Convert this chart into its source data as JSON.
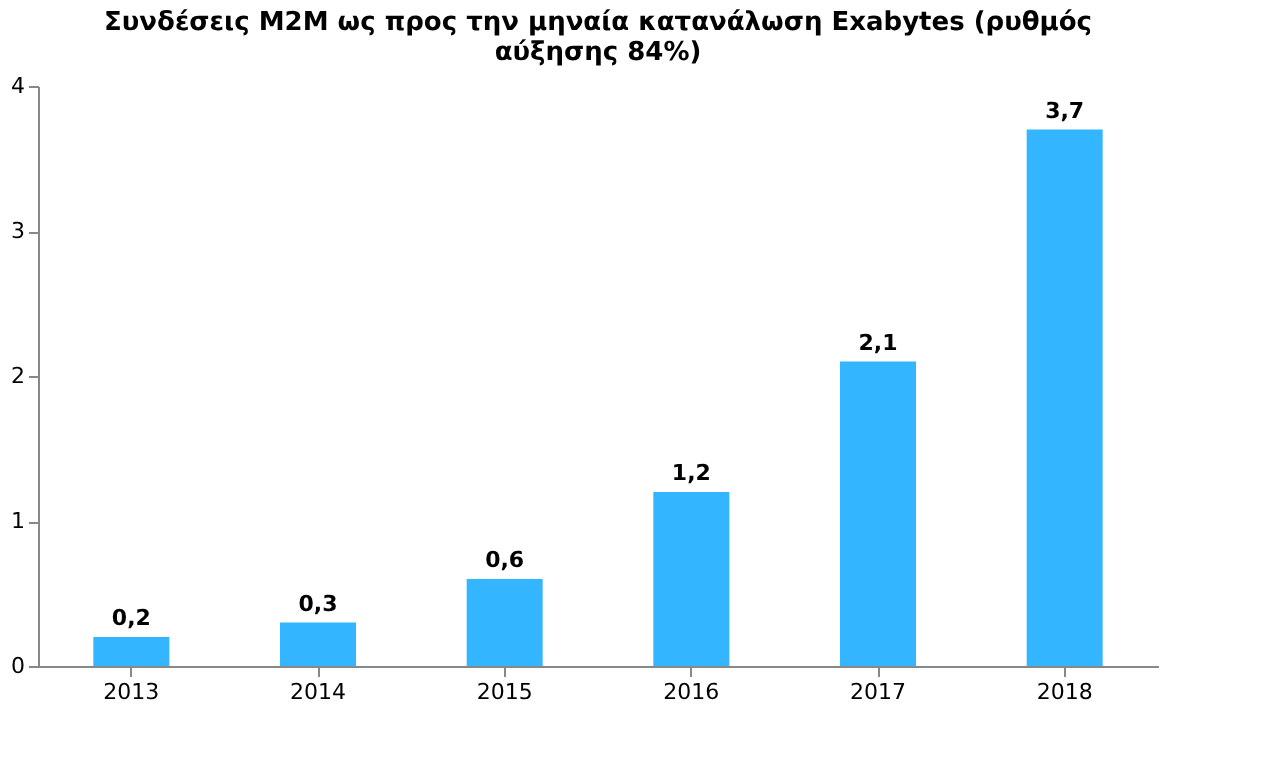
{
  "chart_data": {
    "type": "bar",
    "title": "Συνδέσεις  M2M ως προς την μηναία κατανάλωση Exabytes (ρυθμός αύξησης 84%)",
    "categories": [
      "2013",
      "2014",
      "2015",
      "2016",
      "2017",
      "2018"
    ],
    "values": [
      0.2,
      0.3,
      0.6,
      1.2,
      2.1,
      3.7
    ],
    "value_labels": [
      "0,2",
      "0,3",
      "0,6",
      "1,2",
      "2,1",
      "3,7"
    ],
    "color": "#33b5ff",
    "ylim": [
      0,
      4
    ],
    "yticks": [
      0,
      1,
      2,
      3,
      4
    ],
    "grid": false
  }
}
